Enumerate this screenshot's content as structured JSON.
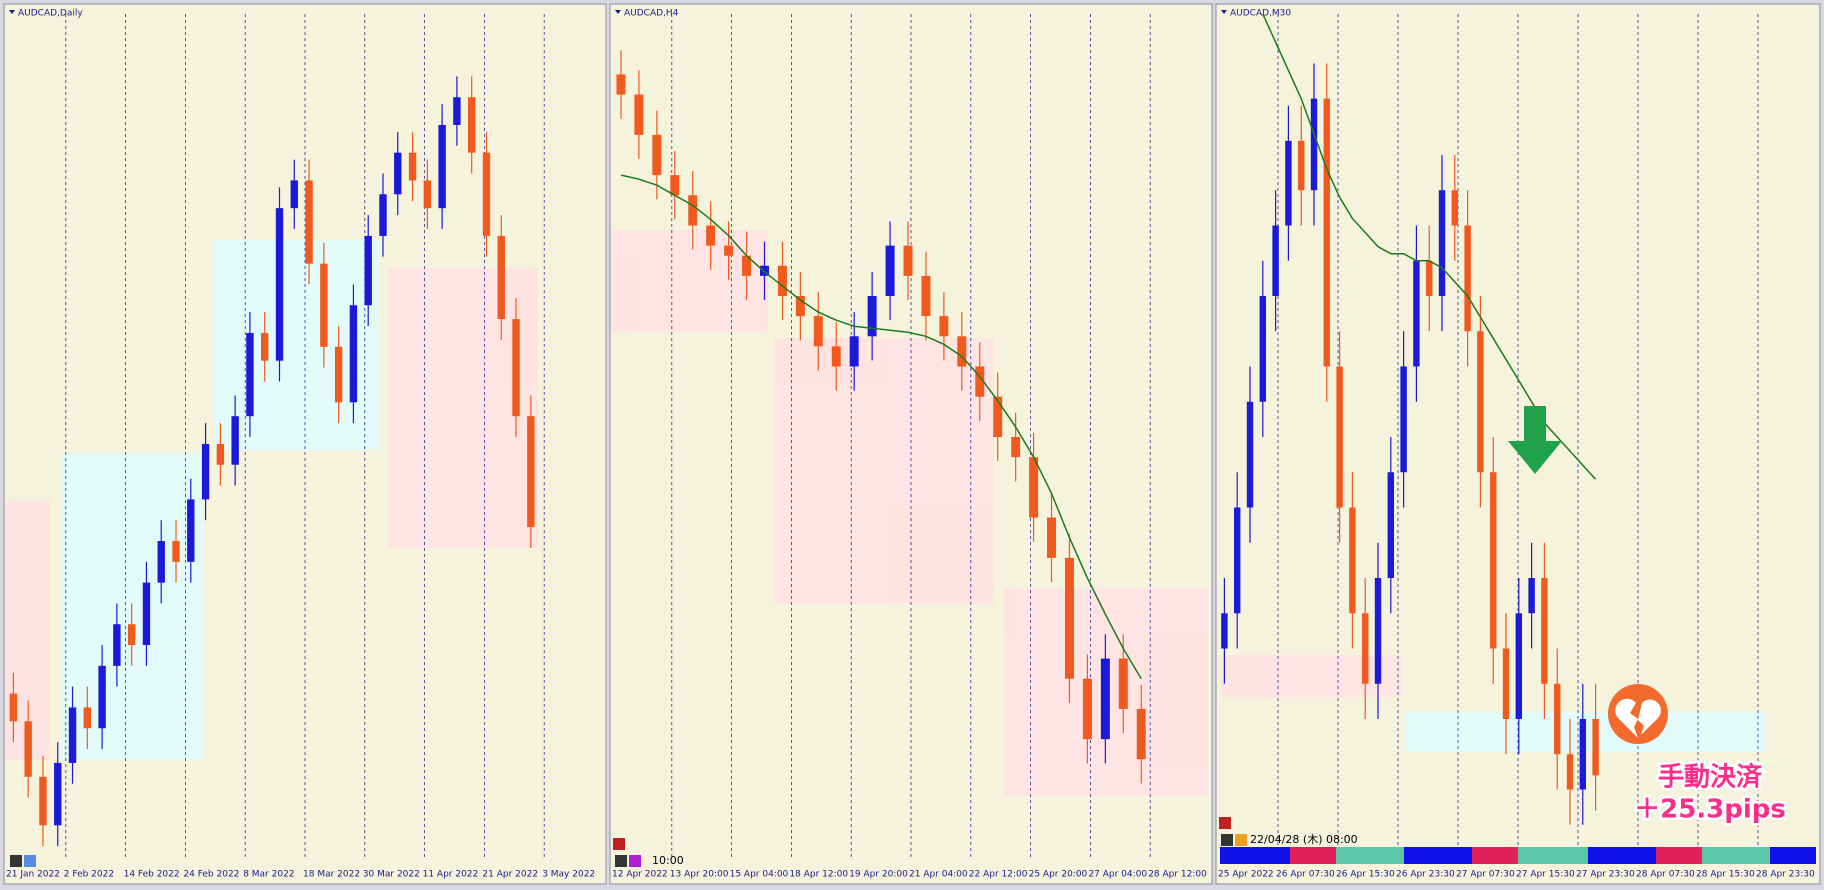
{
  "chart_data": [
    {
      "type": "candlestick",
      "title": "AUDCAD,Daily",
      "x_labels": [
        "21 Jan 2022",
        "2 Feb 2022",
        "14 Feb 2022",
        "24 Feb 2022",
        "8 Mar 2022",
        "18 Mar 2022",
        "30 Mar 2022",
        "11 Apr 2022",
        "21 Apr 2022",
        "3 May 2022"
      ],
      "ylim": [
        0.895,
        0.956
      ],
      "up_color": "#1a1ad8",
      "down_color": "#f05a1e",
      "open": [
        0.907,
        0.905,
        0.901,
        0.8975,
        0.902,
        0.906,
        0.9045,
        0.909,
        0.912,
        0.9105,
        0.915,
        0.918,
        0.9165,
        0.921,
        0.925,
        0.9235,
        0.927,
        0.933,
        0.931,
        0.942,
        0.944,
        0.938,
        0.932,
        0.928,
        0.935,
        0.94,
        0.943,
        0.946,
        0.944,
        0.942,
        0.948,
        0.95,
        0.946,
        0.94,
        0.934,
        0.927
      ],
      "high": [
        0.9085,
        0.9065,
        0.9025,
        0.9035,
        0.9075,
        0.9075,
        0.9105,
        0.9135,
        0.9135,
        0.9165,
        0.9195,
        0.9195,
        0.9225,
        0.9265,
        0.9265,
        0.9285,
        0.9345,
        0.9345,
        0.9435,
        0.9455,
        0.9455,
        0.9395,
        0.9335,
        0.9365,
        0.9415,
        0.9445,
        0.9475,
        0.9475,
        0.9455,
        0.9495,
        0.9515,
        0.9515,
        0.9475,
        0.9415,
        0.9355,
        0.9285
      ],
      "low": [
        0.9035,
        0.8995,
        0.896,
        0.896,
        0.9005,
        0.903,
        0.903,
        0.9075,
        0.909,
        0.909,
        0.9135,
        0.915,
        0.915,
        0.9195,
        0.922,
        0.922,
        0.9255,
        0.9295,
        0.9295,
        0.9405,
        0.9365,
        0.9305,
        0.9265,
        0.9265,
        0.9335,
        0.9385,
        0.9415,
        0.9425,
        0.9405,
        0.9405,
        0.9465,
        0.9445,
        0.9385,
        0.9325,
        0.9255,
        0.9175
      ],
      "close": [
        0.905,
        0.901,
        0.8975,
        0.902,
        0.906,
        0.9045,
        0.909,
        0.912,
        0.9105,
        0.915,
        0.918,
        0.9165,
        0.921,
        0.925,
        0.9235,
        0.927,
        0.933,
        0.931,
        0.942,
        0.944,
        0.938,
        0.932,
        0.928,
        0.935,
        0.94,
        0.943,
        0.946,
        0.944,
        0.942,
        0.948,
        0.95,
        0.946,
        0.94,
        0.934,
        0.927,
        0.919
      ]
    },
    {
      "type": "candlestick",
      "title": "AUDCAD,H4",
      "time_label": "10:00",
      "x_labels": [
        "12 Apr 2022",
        "13 Apr 20:00",
        "15 Apr 04:00",
        "18 Apr 12:00",
        "19 Apr 20:00",
        "21 Apr 04:00",
        "22 Apr 12:00",
        "25 Apr 20:00",
        "27 Apr 04:00",
        "28 Apr 12:00"
      ],
      "ylim": [
        0.914,
        0.956
      ],
      "up_color": "#1a1ad8",
      "down_color": "#f05a1e",
      "ma_color": "#1e7a1e",
      "open": [
        0.953,
        0.952,
        0.95,
        0.948,
        0.947,
        0.9455,
        0.9445,
        0.944,
        0.943,
        0.9435,
        0.942,
        0.941,
        0.9395,
        0.9385,
        0.94,
        0.942,
        0.9445,
        0.943,
        0.941,
        0.94,
        0.9385,
        0.937,
        0.935,
        0.934,
        0.931,
        0.929,
        0.923,
        0.92,
        0.924,
        0.9215
      ],
      "high": [
        0.9542,
        0.9532,
        0.9512,
        0.9492,
        0.9482,
        0.9467,
        0.9457,
        0.9452,
        0.9447,
        0.9447,
        0.9432,
        0.9422,
        0.9407,
        0.9412,
        0.9432,
        0.9457,
        0.9457,
        0.9442,
        0.9422,
        0.9412,
        0.9397,
        0.9382,
        0.9362,
        0.9352,
        0.9322,
        0.9302,
        0.9242,
        0.9252,
        0.9252,
        0.9227
      ],
      "low": [
        0.9508,
        0.9488,
        0.9468,
        0.9458,
        0.9443,
        0.9433,
        0.9428,
        0.9418,
        0.9418,
        0.9408,
        0.9398,
        0.9383,
        0.9373,
        0.9373,
        0.9388,
        0.9408,
        0.9418,
        0.9398,
        0.9388,
        0.9373,
        0.9358,
        0.9338,
        0.9328,
        0.9298,
        0.9278,
        0.9218,
        0.9188,
        0.9188,
        0.9203,
        0.9178
      ],
      "close": [
        0.952,
        0.95,
        0.948,
        0.947,
        0.9455,
        0.9445,
        0.944,
        0.943,
        0.9435,
        0.942,
        0.941,
        0.9395,
        0.9385,
        0.94,
        0.942,
        0.9445,
        0.943,
        0.941,
        0.94,
        0.9385,
        0.937,
        0.935,
        0.934,
        0.931,
        0.929,
        0.923,
        0.92,
        0.924,
        0.9215,
        0.919
      ],
      "ma": [
        0.948,
        0.9478,
        0.9475,
        0.947,
        0.9465,
        0.9458,
        0.945,
        0.944,
        0.9432,
        0.9425,
        0.9418,
        0.9412,
        0.9408,
        0.9405,
        0.9404,
        0.9403,
        0.9402,
        0.94,
        0.9396,
        0.939,
        0.938,
        0.9368,
        0.9355,
        0.934,
        0.9322,
        0.93,
        0.928,
        0.9262,
        0.9245,
        0.923
      ]
    },
    {
      "type": "candlestick",
      "title": "AUDCAD,M30",
      "time_label": "22/04/28 (木) 08:00",
      "x_labels": [
        "25 Apr 2022",
        "26 Apr 07:30",
        "26 Apr 15:30",
        "26 Apr 23:30",
        "27 Apr 07:30",
        "27 Apr 15:30",
        "27 Apr 23:30",
        "28 Apr 07:30",
        "28 Apr 15:30",
        "28 Apr 23:30"
      ],
      "ylim": [
        0.916,
        0.928
      ],
      "up_color": "#1a1ad8",
      "down_color": "#f05a1e",
      "ma_color": "#1e7a1e",
      "open": [
        0.919,
        0.9195,
        0.921,
        0.9225,
        0.924,
        0.925,
        0.9262,
        0.9255,
        0.9268,
        0.923,
        0.921,
        0.9195,
        0.9185,
        0.92,
        0.9215,
        0.923,
        0.9245,
        0.924,
        0.9255,
        0.925,
        0.9235,
        0.9215,
        0.919,
        0.918,
        0.9195,
        0.92,
        0.9185,
        0.9175,
        0.917,
        0.918
      ],
      "high": [
        0.92,
        0.9215,
        0.923,
        0.9245,
        0.9255,
        0.9267,
        0.9267,
        0.9273,
        0.9273,
        0.9235,
        0.9215,
        0.92,
        0.9205,
        0.922,
        0.9235,
        0.925,
        0.925,
        0.926,
        0.926,
        0.9255,
        0.924,
        0.922,
        0.9195,
        0.92,
        0.9205,
        0.9205,
        0.919,
        0.918,
        0.9185,
        0.9185
      ],
      "low": [
        0.9185,
        0.919,
        0.9205,
        0.922,
        0.9235,
        0.9245,
        0.925,
        0.925,
        0.9225,
        0.9205,
        0.919,
        0.918,
        0.918,
        0.9195,
        0.921,
        0.9225,
        0.9235,
        0.9235,
        0.9245,
        0.923,
        0.921,
        0.9185,
        0.9175,
        0.9175,
        0.919,
        0.918,
        0.917,
        0.9165,
        0.9165,
        0.9167
      ],
      "close": [
        0.9195,
        0.921,
        0.9225,
        0.924,
        0.925,
        0.9262,
        0.9255,
        0.9268,
        0.923,
        0.921,
        0.9195,
        0.9185,
        0.92,
        0.9215,
        0.923,
        0.9245,
        0.924,
        0.9255,
        0.925,
        0.9235,
        0.9215,
        0.919,
        0.918,
        0.9195,
        0.92,
        0.9185,
        0.9175,
        0.917,
        0.918,
        0.9172
      ],
      "ma": [
        null,
        null,
        null,
        0.928,
        0.9276,
        0.9272,
        0.9268,
        0.9263,
        0.9258,
        0.9254,
        0.9251,
        0.9249,
        0.9247,
        0.9246,
        0.9246,
        0.9245,
        0.9245,
        0.9244,
        0.9242,
        0.924,
        0.9237,
        0.9234,
        0.9231,
        0.9228,
        0.9225,
        0.9222,
        0.922,
        0.9218,
        0.9216,
        0.9214
      ]
    }
  ],
  "annotation": {
    "line1": "手動決済",
    "line2": "＋25.3pips"
  }
}
